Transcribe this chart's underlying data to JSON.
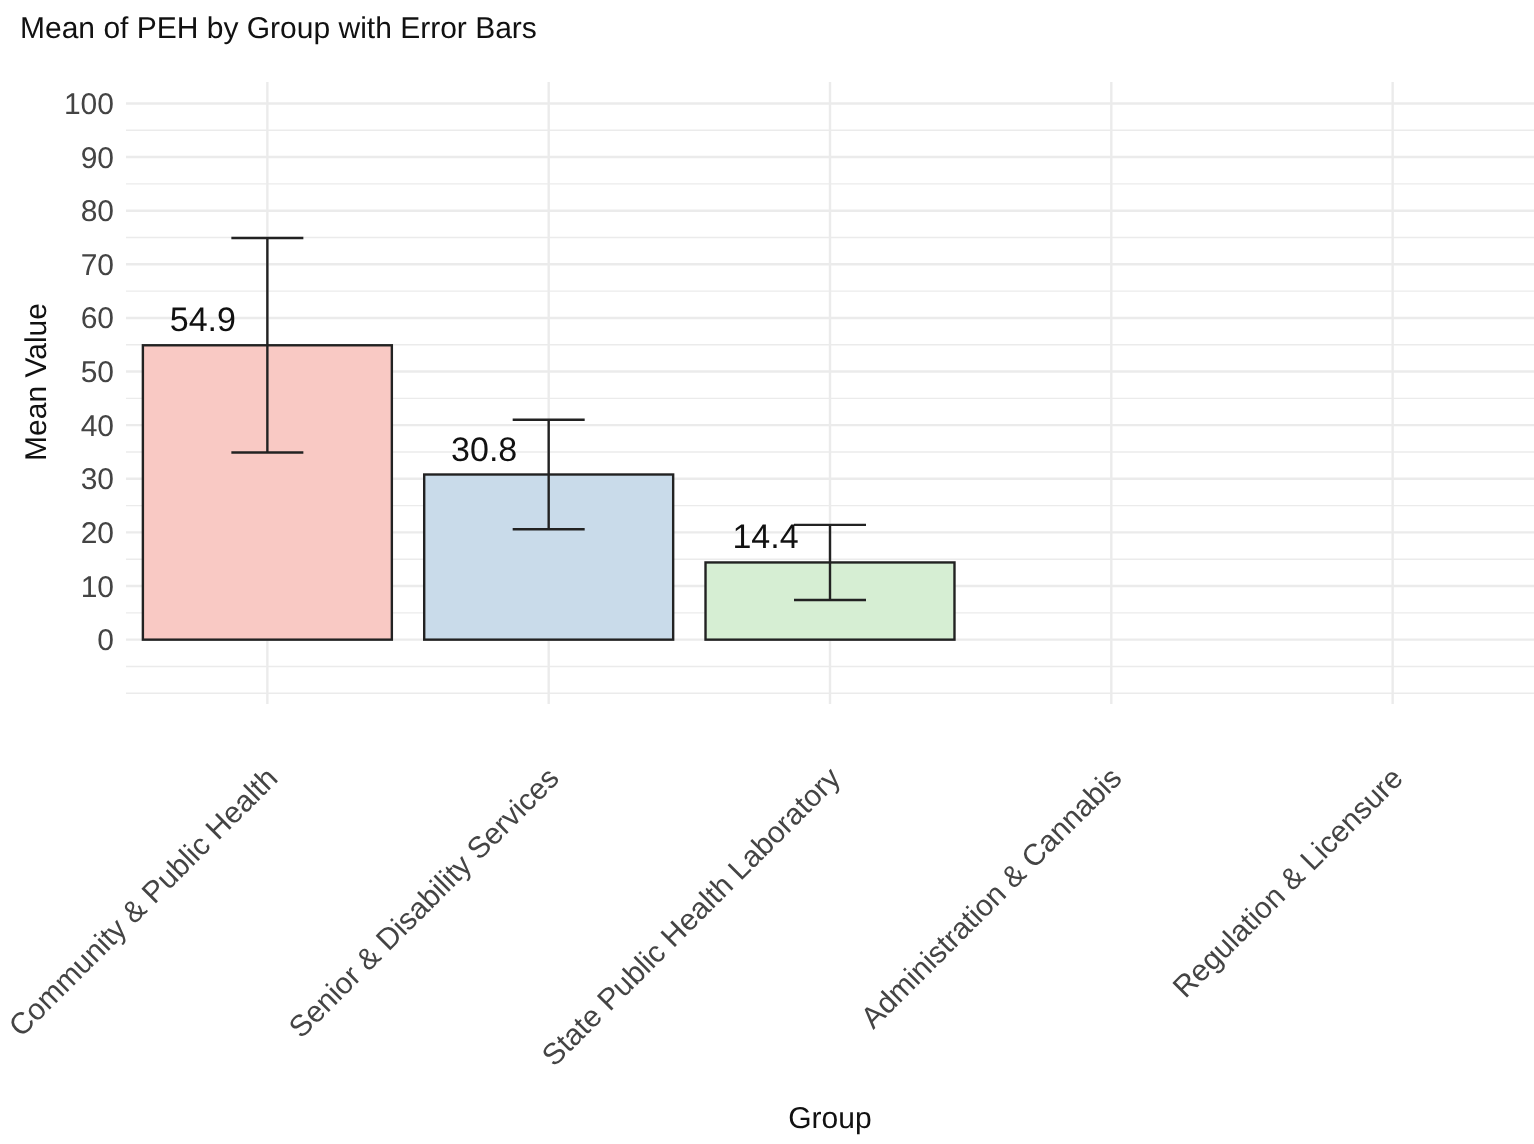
{
  "chart_data": {
    "type": "bar",
    "title": "Mean of PEH by Group with Error Bars",
    "xlabel": "Group",
    "ylabel": "Mean Value",
    "categories": [
      "Community & Public Health",
      "Senior & Disability Services",
      "State Public Health Laboratory",
      "Administration & Cannabis",
      "Regulation & Licensure"
    ],
    "values": [
      54.9,
      30.8,
      14.4,
      null,
      null
    ],
    "errors": [
      20,
      10.2,
      7,
      null,
      null
    ],
    "colors": [
      "#f9c9c4",
      "#c9dbea",
      "#d6eed3",
      null,
      null
    ],
    "data_labels": true,
    "ylim": [
      -12,
      104
    ],
    "yticks": [
      {
        "value": -10,
        "label": null
      },
      {
        "value": -5,
        "label": null
      },
      0,
      {
        "value": 5,
        "label": null
      },
      10,
      {
        "value": 15,
        "label": null
      },
      20,
      {
        "value": 25,
        "label": null
      },
      30,
      {
        "value": 35,
        "label": null
      },
      40,
      {
        "value": 45,
        "label": null
      },
      50,
      {
        "value": 55,
        "label": null
      },
      60,
      {
        "value": 65,
        "label": null
      },
      70,
      {
        "value": 75,
        "label": null
      },
      80,
      {
        "value": 85,
        "label": null
      },
      90,
      {
        "value": 95,
        "label": null
      },
      100
    ],
    "grid": true
  }
}
